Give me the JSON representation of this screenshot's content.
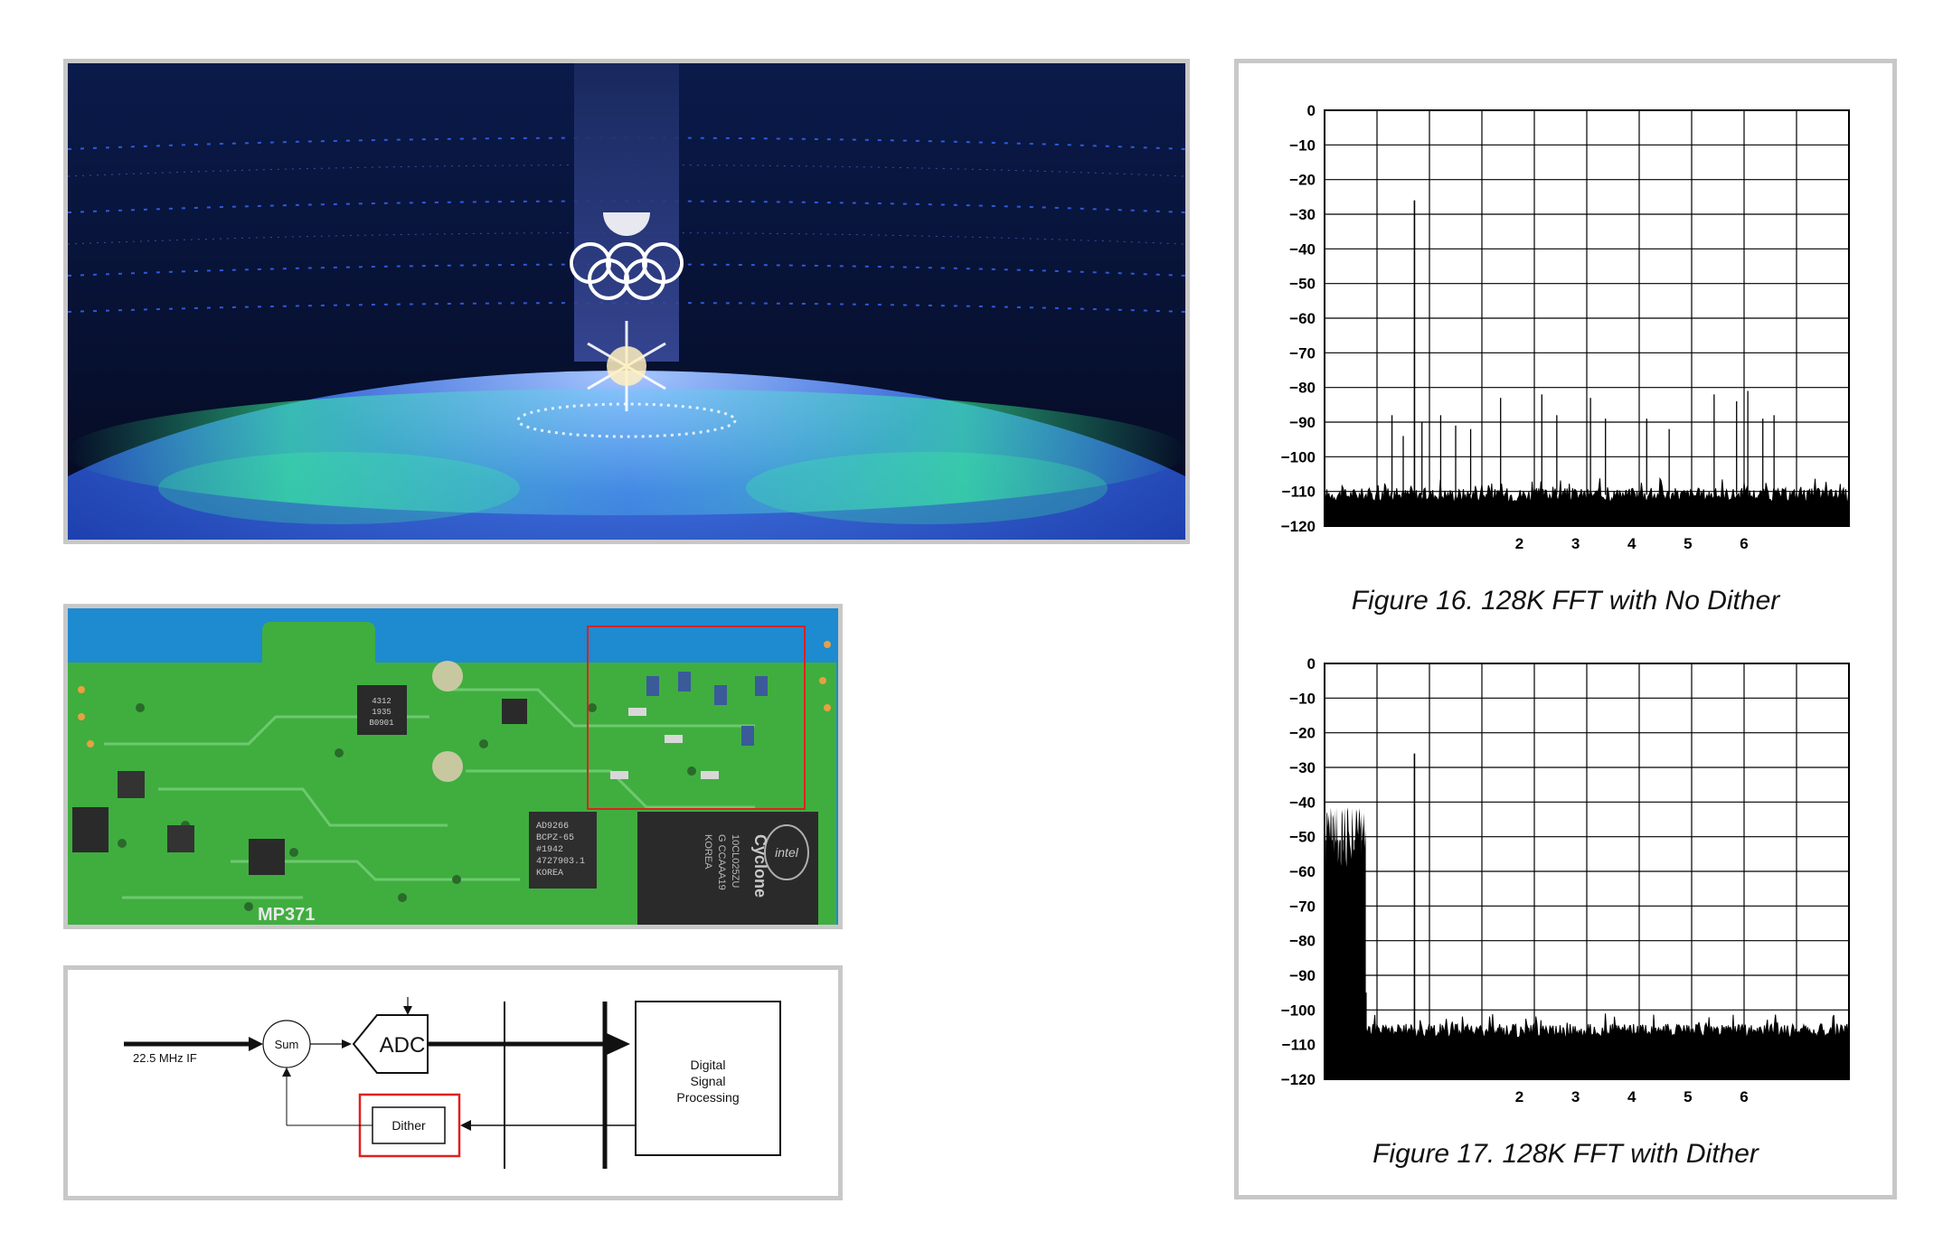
{
  "block_diagram": {
    "input_label": "22.5 MHz IF",
    "sum_label": "Sum",
    "adc_label": "ADC",
    "dither_label": "Dither",
    "dsp_label_lines": [
      "Digital",
      "Signal",
      "Processing"
    ],
    "highlight_color": "#e02020"
  },
  "pcb": {
    "chip_texts": [
      "AD9266",
      "BCPZ-65",
      "#1942",
      "4727903.1",
      "KOREA"
    ],
    "fpga_texts": [
      "Cyclone",
      "intel",
      "10CL025ZU",
      "G CCAAA19",
      "KOREA"
    ],
    "regulator_text": "MP371",
    "small_chip_lines": [
      "4312",
      "1935",
      "B0901"
    ],
    "highlight_color": "#e02020",
    "board_color": "#3fae3f"
  },
  "figures": {
    "fig16_caption": "Figure 16.  128K FFT with No Dither",
    "fig17_caption": "Figure 17.  128K FFT with Dither"
  },
  "chart_data": [
    {
      "type": "line",
      "title": "Figure 16.  128K FFT with No Dither",
      "ylim": [
        -120,
        0
      ],
      "y_ticks": [
        "0",
        "−10",
        "−20",
        "−30",
        "−40",
        "−50",
        "−60",
        "−70",
        "−80",
        "−90",
        "−100",
        "−110",
        "−120"
      ],
      "x_ticks": [
        "2",
        "3",
        "4",
        "5",
        "6"
      ],
      "grid": true,
      "noise_floor_db": -111,
      "fundamental": {
        "x": 1.2,
        "y": -26
      },
      "spurs": [
        {
          "x": 0.9,
          "y": -88
        },
        {
          "x": 1.05,
          "y": -94
        },
        {
          "x": 1.3,
          "y": -90
        },
        {
          "x": 1.55,
          "y": -88
        },
        {
          "x": 1.75,
          "y": -91
        },
        {
          "x": 1.95,
          "y": -92
        },
        {
          "x": 2.35,
          "y": -83
        },
        {
          "x": 2.9,
          "y": -82
        },
        {
          "x": 3.1,
          "y": -88
        },
        {
          "x": 3.55,
          "y": -83
        },
        {
          "x": 3.75,
          "y": -89
        },
        {
          "x": 4.3,
          "y": -89
        },
        {
          "x": 4.6,
          "y": -92
        },
        {
          "x": 5.2,
          "y": -82
        },
        {
          "x": 5.5,
          "y": -84
        },
        {
          "x": 5.65,
          "y": -81
        },
        {
          "x": 5.85,
          "y": -89
        },
        {
          "x": 6.0,
          "y": -88
        }
      ]
    },
    {
      "type": "line",
      "title": "Figure 17.  128K FFT with Dither",
      "ylim": [
        -120,
        0
      ],
      "y_ticks": [
        "0",
        "−10",
        "−20",
        "−30",
        "−40",
        "−50",
        "−60",
        "−70",
        "−80",
        "−90",
        "−100",
        "−110",
        "−120"
      ],
      "x_ticks": [
        "2",
        "3",
        "4",
        "5",
        "6"
      ],
      "grid": true,
      "noise_floor_db": -106,
      "dither_band": {
        "x_start": 0.0,
        "x_end": 0.55,
        "y_top": -41,
        "y_bottom": -90
      },
      "fundamental": {
        "x": 1.2,
        "y": -26
      }
    }
  ]
}
